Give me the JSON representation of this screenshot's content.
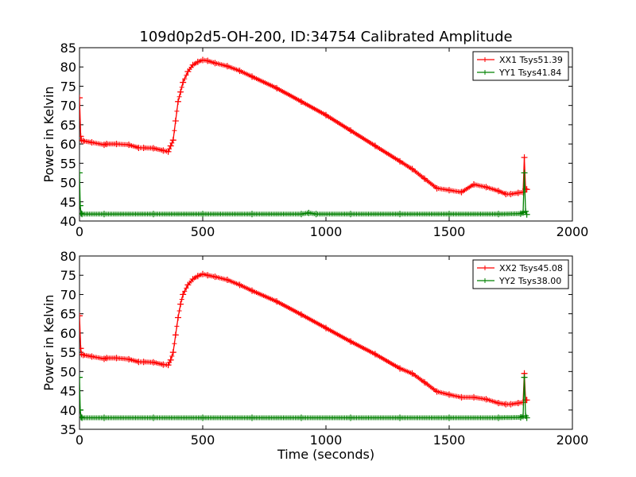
{
  "figure_title": "109d0p2d5-OH-200, ID:34754 Calibrated Amplitude",
  "chart_data": [
    {
      "type": "line",
      "title": "",
      "xlabel": "",
      "ylabel": "Power in Kelvin",
      "xlim": [
        0,
        2000
      ],
      "ylim": [
        40,
        85
      ],
      "xticks": [
        "0",
        "500",
        "1000",
        "1500",
        "2000"
      ],
      "yticks": [
        "40",
        "45",
        "50",
        "55",
        "60",
        "65",
        "70",
        "75",
        "80",
        "85"
      ],
      "grid": false,
      "legend_position": "top-right",
      "series": [
        {
          "name": "XX1 Tsys51.39",
          "color": "#ff0000",
          "marker": "+",
          "x": [
            0,
            5,
            8,
            15,
            50,
            100,
            110,
            150,
            200,
            240,
            260,
            300,
            340,
            360,
            370,
            380,
            390,
            400,
            410,
            420,
            440,
            460,
            480,
            500,
            520,
            550,
            600,
            650,
            700,
            800,
            900,
            1000,
            1100,
            1200,
            1300,
            1350,
            1400,
            1450,
            1500,
            1550,
            1600,
            1650,
            1700,
            1730,
            1750,
            1780,
            1800,
            1805,
            1810,
            1815
          ],
          "y": [
            72,
            62,
            61,
            60.8,
            60.4,
            59.8,
            60.0,
            60.0,
            59.8,
            59.0,
            59.0,
            58.9,
            58.3,
            58.0,
            59.5,
            61.0,
            66,
            71,
            73.5,
            76,
            78.8,
            80.5,
            81.3,
            81.8,
            81.6,
            81.0,
            80.2,
            79.0,
            77.5,
            74.5,
            71.0,
            67.5,
            63.5,
            59.5,
            55.5,
            53.5,
            51.0,
            48.5,
            48.0,
            47.5,
            49.5,
            48.8,
            47.8,
            47.0,
            47.0,
            47.3,
            47.5,
            56.5,
            48.3,
            48.2
          ]
        },
        {
          "name": "YY1 Tsys41.84",
          "color": "#008000",
          "marker": "+",
          "x": [
            0,
            3,
            6,
            10,
            100,
            300,
            500,
            700,
            900,
            930,
            960,
            1100,
            1300,
            1500,
            1700,
            1790,
            1800,
            1805,
            1810,
            1815
          ],
          "y": [
            52.5,
            44,
            42.0,
            41.8,
            41.8,
            41.8,
            41.8,
            41.8,
            41.8,
            42.1,
            41.8,
            41.8,
            41.8,
            41.8,
            41.8,
            41.9,
            42.2,
            52.5,
            42.5,
            41.7
          ]
        }
      ]
    },
    {
      "type": "line",
      "title": "",
      "xlabel": "Time (seconds)",
      "ylabel": "Power in Kelvin",
      "xlim": [
        0,
        2000
      ],
      "ylim": [
        35,
        80
      ],
      "xticks": [
        "0",
        "500",
        "1000",
        "1500",
        "2000"
      ],
      "yticks": [
        "35",
        "40",
        "45",
        "50",
        "55",
        "60",
        "65",
        "70",
        "75",
        "80"
      ],
      "grid": false,
      "legend_position": "top-right",
      "series": [
        {
          "name": "XX2 Tsys45.08",
          "color": "#ff0000",
          "marker": "+",
          "x": [
            0,
            5,
            8,
            15,
            50,
            100,
            110,
            150,
            200,
            240,
            260,
            300,
            340,
            360,
            370,
            380,
            390,
            400,
            410,
            420,
            440,
            460,
            480,
            500,
            520,
            550,
            600,
            650,
            700,
            800,
            900,
            1000,
            1100,
            1200,
            1300,
            1350,
            1400,
            1450,
            1500,
            1550,
            1600,
            1650,
            1700,
            1730,
            1750,
            1780,
            1800,
            1805,
            1810,
            1815
          ],
          "y": [
            64.5,
            56,
            54.5,
            54.3,
            53.9,
            53.3,
            53.5,
            53.5,
            53.2,
            52.5,
            52.5,
            52.4,
            51.8,
            51.7,
            53.0,
            55.0,
            59.5,
            64,
            67.5,
            70,
            72.5,
            74.0,
            74.8,
            75.3,
            75.0,
            74.6,
            73.8,
            72.5,
            71.0,
            68.2,
            64.8,
            61.3,
            57.8,
            54.5,
            50.8,
            49.5,
            47.2,
            44.8,
            44.0,
            43.3,
            43.3,
            42.8,
            41.8,
            41.5,
            41.5,
            41.8,
            42.0,
            49.5,
            42.6,
            42.6
          ]
        },
        {
          "name": "YY2 Tsys38.00",
          "color": "#008000",
          "marker": "+",
          "x": [
            0,
            3,
            6,
            10,
            100,
            300,
            500,
            700,
            900,
            1100,
            1300,
            1500,
            1700,
            1790,
            1800,
            1805,
            1810,
            1815
          ],
          "y": [
            48.5,
            40,
            38.2,
            38.0,
            38.0,
            38.0,
            38.0,
            38.0,
            38.0,
            38.0,
            38.0,
            38.0,
            38.0,
            38.1,
            38.4,
            48.5,
            38.5,
            38.0
          ]
        }
      ]
    }
  ]
}
